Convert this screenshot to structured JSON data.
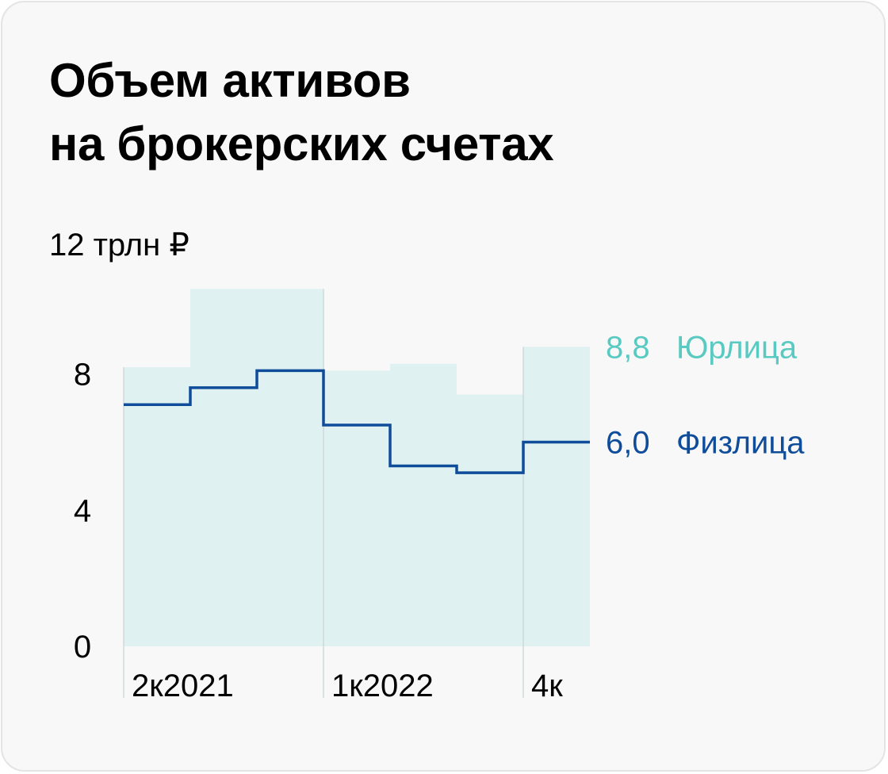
{
  "title_lines": [
    "Объем активов",
    "на брокерских счетах"
  ],
  "chart_data": {
    "type": "area",
    "title": "Объем активов на брокерских счетах",
    "y_unit_label": "12 трлн ₽",
    "ylim": [
      0,
      12
    ],
    "yticks": [
      0,
      4,
      8
    ],
    "ytick_labels": [
      "0",
      "4",
      "8"
    ],
    "grid": false,
    "x_labels": [
      {
        "label": "2к2021",
        "index": 0
      },
      {
        "label": "1к2022",
        "index": 3
      },
      {
        "label": "4к",
        "index": 6
      }
    ],
    "quarter_separators": [
      3,
      6
    ],
    "series": [
      {
        "name": "Юрлица",
        "style": "step-area",
        "color": "#59cac2",
        "fill": "#dff1f1",
        "values": [
          8.2,
          10.5,
          10.5,
          8.1,
          8.3,
          7.4,
          8.8
        ],
        "end_label": "8,8"
      },
      {
        "name": "Физлица",
        "style": "step-line",
        "color": "#0f4c9a",
        "values": [
          7.1,
          7.6,
          8.1,
          6.5,
          5.3,
          5.1,
          6.0
        ],
        "end_label": "6,0"
      }
    ],
    "legend_placement": "right"
  }
}
